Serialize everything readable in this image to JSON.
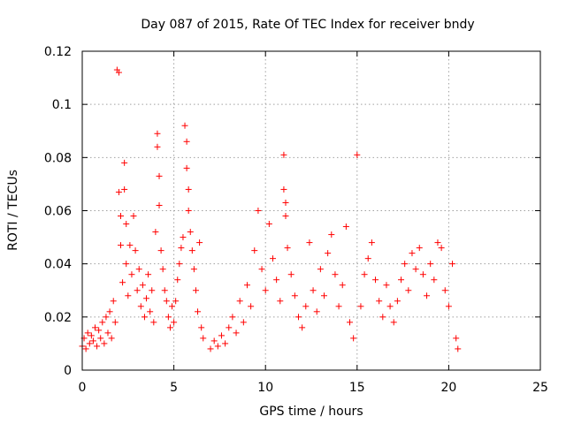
{
  "chart_data": {
    "type": "scatter",
    "title": "Day 087 of 2015, Rate Of TEC Index for receiver bndy",
    "xlabel": "GPS time / hours",
    "ylabel": "ROTI / TECUs",
    "xlim": [
      0,
      25
    ],
    "ylim": [
      0,
      0.12
    ],
    "xticks": [
      "0",
      "5",
      "10",
      "15",
      "20",
      "25"
    ],
    "yticks": [
      "0",
      "0.02",
      "0.04",
      "0.06",
      "0.08",
      "0.1",
      "0.12"
    ],
    "grid": true,
    "marker": "plus",
    "color": "#ff0000",
    "points": [
      [
        0.0,
        0.009
      ],
      [
        0.1,
        0.012
      ],
      [
        0.2,
        0.008
      ],
      [
        0.3,
        0.014
      ],
      [
        0.4,
        0.01
      ],
      [
        0.5,
        0.013
      ],
      [
        0.6,
        0.011
      ],
      [
        0.7,
        0.016
      ],
      [
        0.8,
        0.009
      ],
      [
        0.9,
        0.015
      ],
      [
        1.0,
        0.012
      ],
      [
        1.1,
        0.018
      ],
      [
        1.2,
        0.01
      ],
      [
        1.3,
        0.02
      ],
      [
        1.4,
        0.014
      ],
      [
        1.5,
        0.022
      ],
      [
        1.6,
        0.012
      ],
      [
        1.7,
        0.026
      ],
      [
        1.8,
        0.018
      ],
      [
        1.9,
        0.113
      ],
      [
        2.0,
        0.112
      ],
      [
        2.0,
        0.067
      ],
      [
        2.1,
        0.058
      ],
      [
        2.1,
        0.047
      ],
      [
        2.2,
        0.033
      ],
      [
        2.3,
        0.068
      ],
      [
        2.3,
        0.078
      ],
      [
        2.4,
        0.055
      ],
      [
        2.4,
        0.04
      ],
      [
        2.5,
        0.028
      ],
      [
        2.6,
        0.047
      ],
      [
        2.7,
        0.036
      ],
      [
        2.8,
        0.058
      ],
      [
        2.9,
        0.045
      ],
      [
        3.0,
        0.03
      ],
      [
        3.1,
        0.038
      ],
      [
        3.2,
        0.024
      ],
      [
        3.3,
        0.032
      ],
      [
        3.4,
        0.02
      ],
      [
        3.5,
        0.027
      ],
      [
        3.6,
        0.036
      ],
      [
        3.7,
        0.022
      ],
      [
        3.8,
        0.03
      ],
      [
        3.9,
        0.018
      ],
      [
        4.0,
        0.052
      ],
      [
        4.1,
        0.089
      ],
      [
        4.1,
        0.084
      ],
      [
        4.2,
        0.073
      ],
      [
        4.2,
        0.062
      ],
      [
        4.3,
        0.045
      ],
      [
        4.4,
        0.038
      ],
      [
        4.5,
        0.03
      ],
      [
        4.6,
        0.026
      ],
      [
        4.7,
        0.02
      ],
      [
        4.8,
        0.016
      ],
      [
        4.9,
        0.024
      ],
      [
        5.0,
        0.018
      ],
      [
        5.1,
        0.026
      ],
      [
        5.2,
        0.034
      ],
      [
        5.3,
        0.04
      ],
      [
        5.4,
        0.046
      ],
      [
        5.5,
        0.05
      ],
      [
        5.6,
        0.092
      ],
      [
        5.7,
        0.086
      ],
      [
        5.7,
        0.076
      ],
      [
        5.8,
        0.068
      ],
      [
        5.8,
        0.06
      ],
      [
        5.9,
        0.052
      ],
      [
        6.0,
        0.045
      ],
      [
        6.1,
        0.038
      ],
      [
        6.2,
        0.03
      ],
      [
        6.3,
        0.022
      ],
      [
        6.4,
        0.048
      ],
      [
        6.5,
        0.016
      ],
      [
        6.6,
        0.012
      ],
      [
        7.0,
        0.008
      ],
      [
        7.2,
        0.011
      ],
      [
        7.4,
        0.009
      ],
      [
        7.6,
        0.013
      ],
      [
        7.8,
        0.01
      ],
      [
        8.0,
        0.016
      ],
      [
        8.2,
        0.02
      ],
      [
        8.4,
        0.014
      ],
      [
        8.6,
        0.026
      ],
      [
        8.8,
        0.018
      ],
      [
        9.0,
        0.032
      ],
      [
        9.2,
        0.024
      ],
      [
        9.4,
        0.045
      ],
      [
        9.6,
        0.06
      ],
      [
        9.8,
        0.038
      ],
      [
        10.0,
        0.03
      ],
      [
        10.2,
        0.055
      ],
      [
        10.4,
        0.042
      ],
      [
        10.6,
        0.034
      ],
      [
        10.8,
        0.026
      ],
      [
        11.0,
        0.081
      ],
      [
        11.0,
        0.068
      ],
      [
        11.1,
        0.063
      ],
      [
        11.1,
        0.058
      ],
      [
        11.2,
        0.046
      ],
      [
        11.4,
        0.036
      ],
      [
        11.6,
        0.028
      ],
      [
        11.8,
        0.02
      ],
      [
        12.0,
        0.016
      ],
      [
        12.2,
        0.024
      ],
      [
        12.4,
        0.048
      ],
      [
        12.6,
        0.03
      ],
      [
        12.8,
        0.022
      ],
      [
        13.0,
        0.038
      ],
      [
        13.2,
        0.028
      ],
      [
        13.4,
        0.044
      ],
      [
        13.6,
        0.051
      ],
      [
        13.8,
        0.036
      ],
      [
        14.0,
        0.024
      ],
      [
        14.2,
        0.032
      ],
      [
        14.4,
        0.054
      ],
      [
        14.6,
        0.018
      ],
      [
        14.8,
        0.012
      ],
      [
        15.0,
        0.081
      ],
      [
        15.2,
        0.024
      ],
      [
        15.4,
        0.036
      ],
      [
        15.6,
        0.042
      ],
      [
        15.8,
        0.048
      ],
      [
        16.0,
        0.034
      ],
      [
        16.2,
        0.026
      ],
      [
        16.4,
        0.02
      ],
      [
        16.6,
        0.032
      ],
      [
        16.8,
        0.024
      ],
      [
        17.0,
        0.018
      ],
      [
        17.2,
        0.026
      ],
      [
        17.4,
        0.034
      ],
      [
        17.6,
        0.04
      ],
      [
        17.8,
        0.03
      ],
      [
        18.0,
        0.044
      ],
      [
        18.2,
        0.038
      ],
      [
        18.4,
        0.046
      ],
      [
        18.6,
        0.036
      ],
      [
        18.8,
        0.028
      ],
      [
        19.0,
        0.04
      ],
      [
        19.2,
        0.034
      ],
      [
        19.4,
        0.048
      ],
      [
        19.6,
        0.046
      ],
      [
        19.8,
        0.03
      ],
      [
        20.0,
        0.024
      ],
      [
        20.2,
        0.04
      ],
      [
        20.4,
        0.012
      ],
      [
        20.5,
        0.008
      ]
    ]
  }
}
